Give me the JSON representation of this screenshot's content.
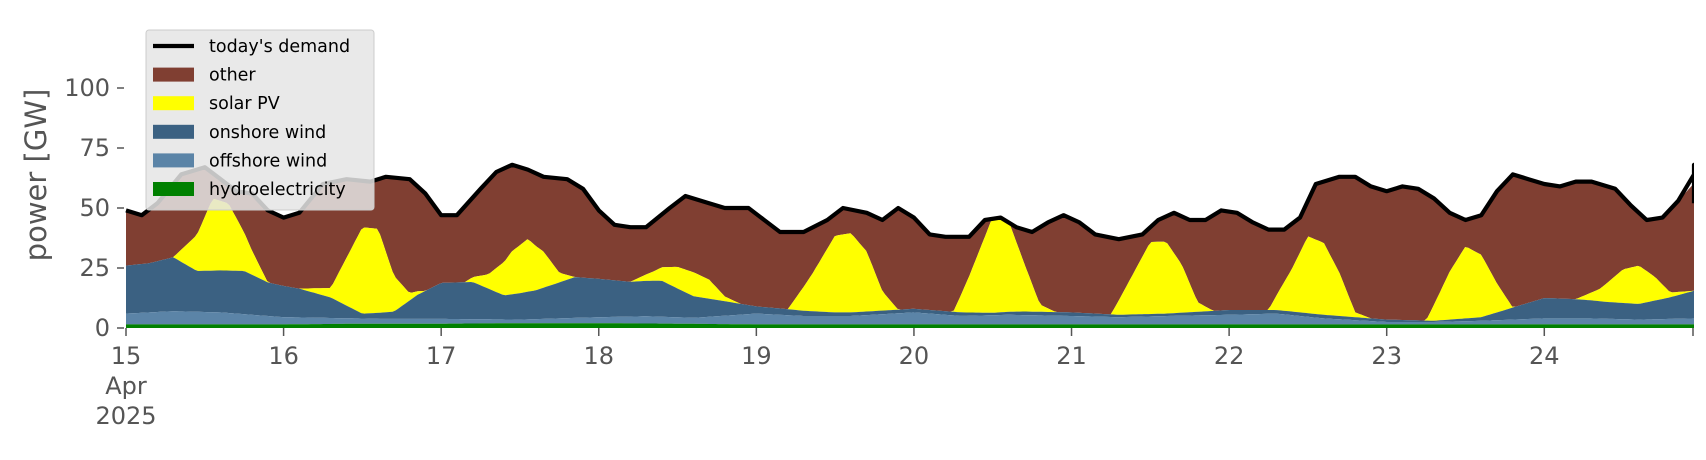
{
  "chart_data": {
    "type": "area",
    "ylabel": "power [GW]",
    "xlabel": "",
    "ylim": [
      0,
      120
    ],
    "yticks": [
      0,
      25,
      50,
      75,
      100
    ],
    "xlim": [
      15.0,
      24.95
    ],
    "x_ticks": [
      {
        "x": 15,
        "lines": [
          "15",
          "Apr",
          "2025"
        ]
      },
      {
        "x": 16,
        "lines": [
          "16"
        ]
      },
      {
        "x": 17,
        "lines": [
          "17"
        ]
      },
      {
        "x": 18,
        "lines": [
          "18"
        ]
      },
      {
        "x": 19,
        "lines": [
          "19"
        ]
      },
      {
        "x": 20,
        "lines": [
          "20"
        ]
      },
      {
        "x": 21,
        "lines": [
          "21"
        ]
      },
      {
        "x": 22,
        "lines": [
          "22"
        ]
      },
      {
        "x": 23,
        "lines": [
          "23"
        ]
      },
      {
        "x": 24,
        "lines": [
          "24"
        ]
      }
    ],
    "grid": false,
    "legend_position": "top-left",
    "stacked_series": [
      {
        "name": "hydroelectricity",
        "color": "#008000",
        "points": [
          [
            15.0,
            1.5
          ],
          [
            15.5,
            1.5
          ],
          [
            16.0,
            1.5
          ],
          [
            16.5,
            1.8
          ],
          [
            17.0,
            1.8
          ],
          [
            17.5,
            2.0
          ],
          [
            18.0,
            2.0
          ],
          [
            18.5,
            1.8
          ],
          [
            19.0,
            1.5
          ],
          [
            19.5,
            1.5
          ],
          [
            20.0,
            1.5
          ],
          [
            20.5,
            1.5
          ],
          [
            21.0,
            1.5
          ],
          [
            21.5,
            1.5
          ],
          [
            22.0,
            1.5
          ],
          [
            22.5,
            1.5
          ],
          [
            23.0,
            1.5
          ],
          [
            23.5,
            1.5
          ],
          [
            24.0,
            1.5
          ],
          [
            24.95,
            1.5
          ]
        ]
      },
      {
        "name": "offshore wind",
        "color": "#5b84a7",
        "points": [
          [
            15.0,
            4.5
          ],
          [
            15.3,
            5.5
          ],
          [
            15.6,
            5.0
          ],
          [
            16.0,
            3.0
          ],
          [
            16.3,
            2.5
          ],
          [
            16.6,
            2.0
          ],
          [
            17.0,
            2.0
          ],
          [
            17.5,
            1.5
          ],
          [
            18.0,
            2.5
          ],
          [
            18.3,
            3.0
          ],
          [
            18.6,
            2.5
          ],
          [
            19.0,
            4.5
          ],
          [
            19.3,
            3.5
          ],
          [
            19.6,
            3.5
          ],
          [
            20.0,
            5.0
          ],
          [
            20.3,
            3.5
          ],
          [
            20.6,
            4.0
          ],
          [
            21.0,
            3.5
          ],
          [
            21.3,
            3.0
          ],
          [
            21.6,
            3.5
          ],
          [
            22.0,
            4.0
          ],
          [
            22.3,
            4.5
          ],
          [
            22.6,
            2.5
          ],
          [
            23.0,
            1.0
          ],
          [
            23.3,
            1.0
          ],
          [
            23.6,
            1.5
          ],
          [
            24.0,
            2.5
          ],
          [
            24.3,
            2.5
          ],
          [
            24.6,
            2.0
          ],
          [
            24.95,
            2.5
          ]
        ]
      },
      {
        "name": "onshore wind",
        "color": "#3b6182",
        "points": [
          [
            15.0,
            20.0
          ],
          [
            15.15,
            20.5
          ],
          [
            15.3,
            22.5
          ],
          [
            15.45,
            17.0
          ],
          [
            15.6,
            17.5
          ],
          [
            15.75,
            18.0
          ],
          [
            15.9,
            14.0
          ],
          [
            16.1,
            12.0
          ],
          [
            16.3,
            8.5
          ],
          [
            16.5,
            2.0
          ],
          [
            16.7,
            3.0
          ],
          [
            16.85,
            10.0
          ],
          [
            17.0,
            15.0
          ],
          [
            17.2,
            15.5
          ],
          [
            17.4,
            10.0
          ],
          [
            17.6,
            12.0
          ],
          [
            17.85,
            17.0
          ],
          [
            18.0,
            16.0
          ],
          [
            18.2,
            14.5
          ],
          [
            18.4,
            15.0
          ],
          [
            18.6,
            9.0
          ],
          [
            18.8,
            6.0
          ],
          [
            19.0,
            3.0
          ],
          [
            19.2,
            2.5
          ],
          [
            19.5,
            1.5
          ],
          [
            19.8,
            1.5
          ],
          [
            20.0,
            1.5
          ],
          [
            20.3,
            1.5
          ],
          [
            20.5,
            1.0
          ],
          [
            20.7,
            1.5
          ],
          [
            21.0,
            1.5
          ],
          [
            21.3,
            1.0
          ],
          [
            21.6,
            1.0
          ],
          [
            21.8,
            1.5
          ],
          [
            22.0,
            2.0
          ],
          [
            22.3,
            1.5
          ],
          [
            22.6,
            1.5
          ],
          [
            23.0,
            1.0
          ],
          [
            23.3,
            0.5
          ],
          [
            23.6,
            1.5
          ],
          [
            23.8,
            5.0
          ],
          [
            24.0,
            8.5
          ],
          [
            24.2,
            8.0
          ],
          [
            24.4,
            7.0
          ],
          [
            24.6,
            6.5
          ],
          [
            24.8,
            9.0
          ],
          [
            24.95,
            11.5
          ]
        ]
      },
      {
        "name": "solar PV",
        "color": "#ffff00",
        "points": [
          [
            15.0,
            0
          ],
          [
            15.3,
            0
          ],
          [
            15.45,
            15
          ],
          [
            15.55,
            30
          ],
          [
            15.65,
            28
          ],
          [
            15.8,
            10
          ],
          [
            15.9,
            0
          ],
          [
            16.1,
            0
          ],
          [
            16.3,
            4
          ],
          [
            16.4,
            20
          ],
          [
            16.5,
            36
          ],
          [
            16.6,
            35
          ],
          [
            16.7,
            15
          ],
          [
            16.8,
            3
          ],
          [
            16.9,
            0
          ],
          [
            17.15,
            0
          ],
          [
            17.3,
            6
          ],
          [
            17.45,
            18
          ],
          [
            17.55,
            22
          ],
          [
            17.65,
            15
          ],
          [
            17.75,
            4
          ],
          [
            17.85,
            0
          ],
          [
            18.2,
            0
          ],
          [
            18.35,
            4
          ],
          [
            18.5,
            9
          ],
          [
            18.6,
            10
          ],
          [
            18.7,
            8
          ],
          [
            18.8,
            2
          ],
          [
            18.9,
            0
          ],
          [
            19.2,
            0
          ],
          [
            19.35,
            15
          ],
          [
            19.5,
            32
          ],
          [
            19.6,
            33
          ],
          [
            19.7,
            25
          ],
          [
            19.8,
            8
          ],
          [
            19.9,
            0
          ],
          [
            20.25,
            0
          ],
          [
            20.35,
            15
          ],
          [
            20.5,
            40
          ],
          [
            20.6,
            38
          ],
          [
            20.7,
            20
          ],
          [
            20.8,
            3
          ],
          [
            20.9,
            0
          ],
          [
            21.25,
            0
          ],
          [
            21.4,
            18
          ],
          [
            21.5,
            30
          ],
          [
            21.6,
            30
          ],
          [
            21.7,
            20
          ],
          [
            21.8,
            4
          ],
          [
            21.9,
            0
          ],
          [
            22.25,
            0
          ],
          [
            22.4,
            18
          ],
          [
            22.5,
            32
          ],
          [
            22.6,
            30
          ],
          [
            22.7,
            18
          ],
          [
            22.8,
            2
          ],
          [
            22.9,
            0
          ],
          [
            23.25,
            0
          ],
          [
            23.4,
            20
          ],
          [
            23.5,
            30
          ],
          [
            23.6,
            26
          ],
          [
            23.7,
            12
          ],
          [
            23.8,
            0
          ],
          [
            24.2,
            0
          ],
          [
            24.35,
            5
          ],
          [
            24.5,
            14
          ],
          [
            24.6,
            16
          ],
          [
            24.7,
            10
          ],
          [
            24.8,
            2
          ],
          [
            24.95,
            0
          ]
        ]
      }
    ],
    "demand": {
      "name": "today's demand",
      "color": "#000000",
      "points": [
        [
          15.0,
          49
        ],
        [
          15.1,
          47
        ],
        [
          15.2,
          52
        ],
        [
          15.35,
          64
        ],
        [
          15.5,
          67
        ],
        [
          15.6,
          62
        ],
        [
          15.7,
          57
        ],
        [
          15.8,
          56
        ],
        [
          15.9,
          49
        ],
        [
          16.0,
          46
        ],
        [
          16.1,
          48
        ],
        [
          16.25,
          60
        ],
        [
          16.4,
          62
        ],
        [
          16.55,
          61
        ],
        [
          16.65,
          63
        ],
        [
          16.8,
          62
        ],
        [
          16.9,
          56
        ],
        [
          17.0,
          47
        ],
        [
          17.1,
          47
        ],
        [
          17.25,
          58
        ],
        [
          17.35,
          65
        ],
        [
          17.45,
          68
        ],
        [
          17.55,
          66
        ],
        [
          17.65,
          63
        ],
        [
          17.8,
          62
        ],
        [
          17.9,
          58
        ],
        [
          18.0,
          49
        ],
        [
          18.1,
          43
        ],
        [
          18.2,
          42
        ],
        [
          18.3,
          42
        ],
        [
          18.45,
          50
        ],
        [
          18.55,
          55
        ],
        [
          18.7,
          52
        ],
        [
          18.8,
          50
        ],
        [
          18.95,
          50
        ],
        [
          19.05,
          45
        ],
        [
          19.15,
          40
        ],
        [
          19.3,
          40
        ],
        [
          19.45,
          45
        ],
        [
          19.55,
          50
        ],
        [
          19.7,
          48
        ],
        [
          19.8,
          45
        ],
        [
          19.9,
          50
        ],
        [
          20.0,
          46
        ],
        [
          20.1,
          39
        ],
        [
          20.2,
          38
        ],
        [
          20.35,
          38
        ],
        [
          20.45,
          45
        ],
        [
          20.55,
          46
        ],
        [
          20.65,
          42
        ],
        [
          20.75,
          40
        ],
        [
          20.85,
          44
        ],
        [
          20.95,
          47
        ],
        [
          21.05,
          44
        ],
        [
          21.15,
          39
        ],
        [
          21.3,
          37
        ],
        [
          21.45,
          39
        ],
        [
          21.55,
          45
        ],
        [
          21.65,
          48
        ],
        [
          21.75,
          45
        ],
        [
          21.85,
          45
        ],
        [
          21.95,
          49
        ],
        [
          22.05,
          48
        ],
        [
          22.15,
          44
        ],
        [
          22.25,
          41
        ],
        [
          22.35,
          41
        ],
        [
          22.45,
          46
        ],
        [
          22.55,
          60
        ],
        [
          22.7,
          63
        ],
        [
          22.8,
          63
        ],
        [
          22.9,
          59
        ],
        [
          23.0,
          57
        ],
        [
          23.1,
          59
        ],
        [
          23.2,
          58
        ],
        [
          23.3,
          54
        ],
        [
          23.4,
          48
        ],
        [
          23.5,
          45
        ],
        [
          23.6,
          47
        ],
        [
          23.7,
          57
        ],
        [
          23.8,
          64
        ],
        [
          23.9,
          62
        ],
        [
          24.0,
          60
        ],
        [
          24.1,
          59
        ],
        [
          24.2,
          61
        ],
        [
          24.3,
          61
        ],
        [
          24.45,
          58
        ],
        [
          24.55,
          51
        ],
        [
          24.65,
          45
        ],
        [
          24.75,
          46
        ],
        [
          24.85,
          53
        ],
        [
          25.0,
          64
        ],
        [
          25.15,
          68
        ],
        [
          25.25,
          64
        ],
        [
          25.35,
          62
        ],
        [
          25.45,
          62
        ],
        [
          25.55,
          61
        ],
        [
          25.65,
          52
        ]
      ]
    },
    "other": {
      "name": "other",
      "color": "#803f32",
      "note": "fills between stacked renewables and today's demand"
    },
    "legend": [
      {
        "label": "today's demand",
        "color": "#000000",
        "kind": "line"
      },
      {
        "label": "other",
        "color": "#803f32",
        "kind": "patch"
      },
      {
        "label": "solar PV",
        "color": "#ffff00",
        "kind": "patch"
      },
      {
        "label": "onshore wind",
        "color": "#3b6182",
        "kind": "patch"
      },
      {
        "label": "offshore wind",
        "color": "#5b84a7",
        "kind": "patch"
      },
      {
        "label": "hydroelectricity",
        "color": "#008000",
        "kind": "patch"
      }
    ]
  }
}
